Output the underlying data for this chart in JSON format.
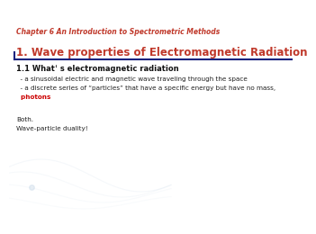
{
  "bg_color": "#ffffff",
  "subtitle": "Chapter 6 An Introduction to Spectrometric Methods",
  "title": "1. Wave properties of Electromagnetic Radiation",
  "subtitle_color": "#c0392b",
  "title_color": "#c0392b",
  "subtitle_fontsize": 5.5,
  "title_fontsize": 8.5,
  "section_heading": "1.1 Whatʿ s electromagnetic radiation",
  "section_heading_color": "#111111",
  "section_heading_fontsize": 6.0,
  "bullet1": "  - a sinusoidal electric and magnetic wave traveling through the space",
  "bullet2": "  - a discrete series of “particles” that have a specific energy but have no mass,",
  "photons_text": "  photons",
  "photons_color": "#cc0000",
  "bullet_color": "#222222",
  "bullet_fontsize": 5.2,
  "body_text1": "Both.",
  "body_text2": "Wave-particle duality!",
  "body_fontsize": 5.2,
  "body_color": "#222222",
  "divider_color": "#1a237e",
  "wave_color": "#c8d8e8"
}
